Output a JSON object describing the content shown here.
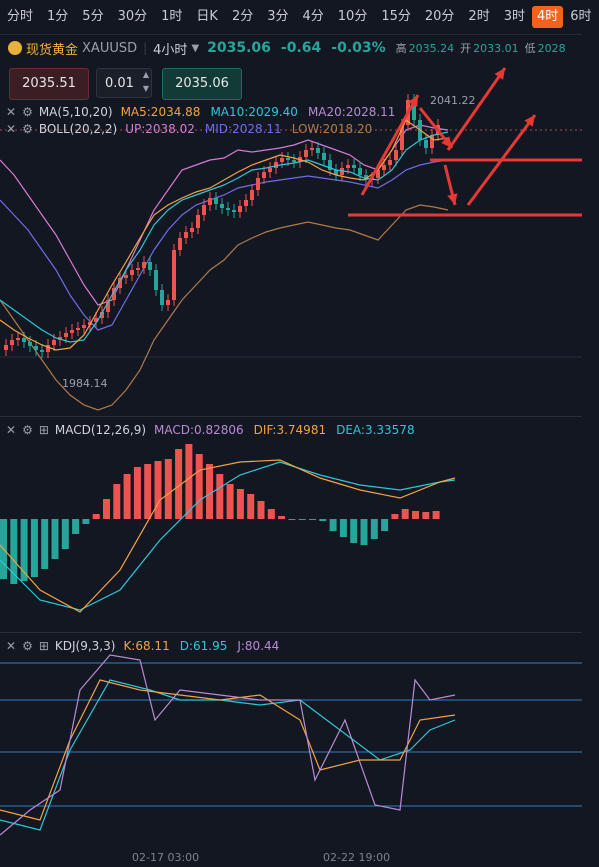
{
  "timeframes": [
    "分时",
    "1分",
    "5分",
    "30分",
    "1时",
    "日K",
    "2分",
    "3分",
    "4分",
    "10分",
    "15分",
    "20分",
    "2时",
    "3时",
    "4时",
    "6时"
  ],
  "active_timeframe_index": 14,
  "symbol": {
    "name": "现货黄金",
    "code": "XAUUSD",
    "period": "4小时",
    "price": "2035.06",
    "change": "-0.64",
    "change_pct": "-0.03%",
    "high_label": "高",
    "high": "2035.24",
    "open_label": "开",
    "open": "2033.01",
    "low_label": "低",
    "low": "2028"
  },
  "order": {
    "sell_price": "2035.51",
    "quantity": "0.01",
    "buy_price": "2035.06"
  },
  "main_indicators": {
    "ma": {
      "name": "MA(5,10,20)",
      "ma5": "MA5:2034.88",
      "ma10": "MA10:2029.40",
      "ma20": "MA20:2028.11"
    },
    "boll": {
      "name": "BOLL(20,2,2)",
      "up": "UP:2038.02",
      "mid": "MID:2028.11",
      "low": "LOW:2018.20"
    }
  },
  "price_labels": {
    "high_mark": "2041.22",
    "low_mark": "1984.14"
  },
  "macd": {
    "name": "MACD(12,26,9)",
    "macd": "MACD:0.82806",
    "dif": "DIF:3.74981",
    "dea": "DEA:3.33578"
  },
  "kdj": {
    "name": "KDJ(9,3,3)",
    "k": "K:68.11",
    "d": "D:61.95",
    "j": "J:80.44"
  },
  "x_axis": {
    "date1": "02-17 03:00",
    "date2": "02-22 19:00"
  },
  "colors": {
    "up": "#ef5350",
    "down": "#26a69a",
    "active_tab": "#f4621f",
    "ma5": "#f3a343",
    "ma10": "#2ec7d6",
    "ma20": "#b98bd6",
    "boll_up": "#d67bd3",
    "boll_mid": "#6f6ce8",
    "boll_low": "#b07a4a",
    "arrow": "#e53935"
  }
}
